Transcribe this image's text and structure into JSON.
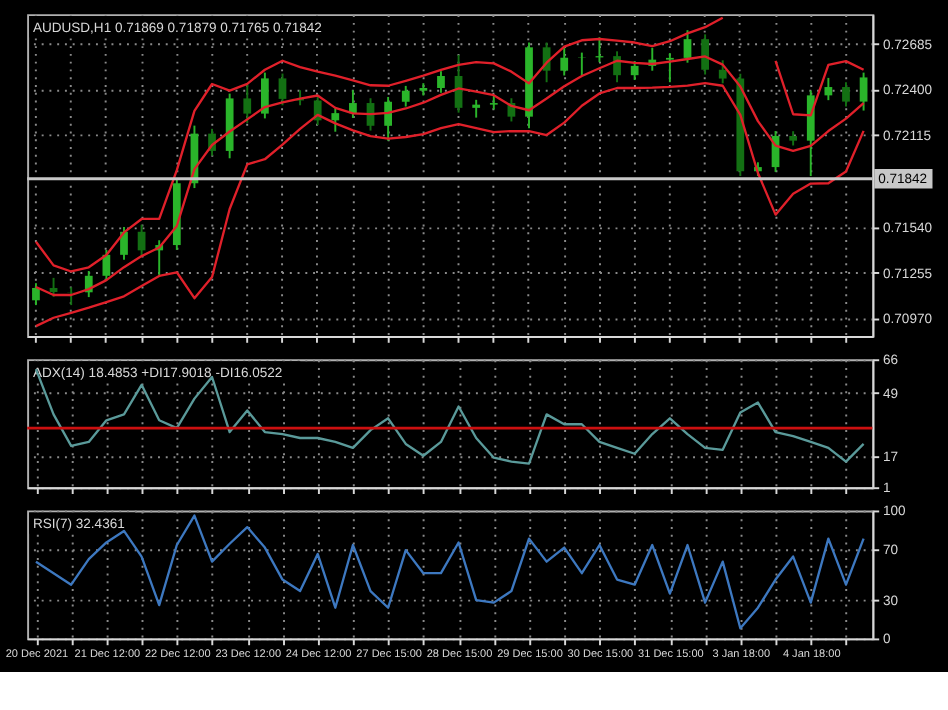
{
  "chart_data": [
    {
      "type": "candlestick",
      "title": "AUDUSD,H1  0.71869 0.71879 0.71765 0.71842",
      "colors": [
        "#2ab52a",
        "#137013",
        "#137013",
        "#2ab52a",
        "#2ab52a",
        "#2ab52a",
        "#137013",
        "#2ab52a",
        "#2ab52a",
        "#2ab52a",
        "#137013",
        "#2ab52a",
        "#137013",
        "#2ab52a",
        "#137013",
        "#137013",
        "#137013",
        "#2ab52a",
        "#2ab52a",
        "#137013",
        "#2ab52a",
        "#2ab52a",
        "#2ab52a",
        "#2ab52a",
        "#137013",
        "#2ab52a",
        "#2ab52a",
        "#137013",
        "#2ab52a",
        "#137013",
        "#2ab52a",
        "#2ab52a",
        "#2ab52a",
        "#137013",
        "#2ab52a",
        "#2ab52a",
        "#2ab52a",
        "#2ab52a",
        "#137013",
        "#137013",
        "#137013",
        "#2ab52a",
        "#2ab52a",
        "#137013",
        "#2ab52a",
        "#2ab52a",
        "#137013",
        "#2ab52a"
      ],
      "grid": true,
      "tick_labels": "y",
      "categories": [
        null,
        null,
        null,
        null,
        null,
        null,
        null,
        null,
        null,
        null,
        null,
        null,
        null,
        null,
        null,
        null,
        null,
        null,
        null,
        null,
        null,
        null,
        null,
        null,
        null,
        null,
        null,
        null,
        null,
        null,
        null,
        null,
        null,
        null,
        null,
        null,
        null,
        null,
        null,
        null,
        null,
        null,
        null,
        null,
        null,
        null,
        null,
        null
      ],
      "ylim": [
        0.7086,
        0.7287
      ],
      "yticks": [
        {
          "value": 0.72685,
          "label": "0.72685"
        },
        {
          "value": 0.724,
          "label": "0.72400"
        },
        {
          "value": 0.72115,
          "label": "0.72115"
        },
        {
          "value": 0.7154,
          "label": "0.71540"
        },
        {
          "value": 0.71255,
          "label": "0.71255"
        },
        {
          "value": 0.7097,
          "label": "0.70970"
        }
      ],
      "ref_lines": [
        {
          "axis": "y",
          "value": 0.71842,
          "label": "0.71842",
          "color": "#c8c8c8"
        }
      ],
      "ohlc": [
        [
          0.71083,
          0.7119,
          0.71053,
          0.7116
        ],
        [
          0.7116,
          0.71223,
          0.71105,
          0.71135
        ],
        [
          0.71135,
          0.71165,
          0.71053,
          0.71133
        ],
        [
          0.71133,
          0.71266,
          0.71103,
          0.71236
        ],
        [
          0.71236,
          0.71397,
          0.71206,
          0.71367
        ],
        [
          0.71367,
          0.71541,
          0.71337,
          0.71511
        ],
        [
          0.71511,
          0.71555,
          0.71365,
          0.71395
        ],
        [
          0.71395,
          0.71458,
          0.7123,
          0.71428
        ],
        [
          0.71428,
          0.71844,
          0.71398,
          0.71814
        ],
        [
          0.71814,
          0.72174,
          0.71784,
          0.72124
        ],
        [
          0.72124,
          0.72154,
          0.71986,
          0.72016
        ],
        [
          0.72016,
          0.72374,
          0.7197,
          0.72344
        ],
        [
          0.72344,
          0.72439,
          0.72191,
          0.72249
        ],
        [
          0.72249,
          0.72505,
          0.72219,
          0.72469
        ],
        [
          0.72469,
          0.72499,
          0.72301,
          0.72341
        ],
        [
          0.72341,
          0.72395,
          0.72301,
          0.72331
        ],
        [
          0.72331,
          0.72361,
          0.72177,
          0.72207
        ],
        [
          0.72207,
          0.72282,
          0.72136,
          0.72252
        ],
        [
          0.72252,
          0.72395,
          0.72222,
          0.72315
        ],
        [
          0.72315,
          0.72345,
          0.72143,
          0.72173
        ],
        [
          0.72173,
          0.72353,
          0.7208,
          0.72323
        ],
        [
          0.72323,
          0.72422,
          0.72293,
          0.72392
        ],
        [
          0.72392,
          0.72439,
          0.72362,
          0.72409
        ],
        [
          0.72409,
          0.72514,
          0.72379,
          0.72484
        ],
        [
          0.72484,
          0.72616,
          0.72255,
          0.72285
        ],
        [
          0.72285,
          0.72335,
          0.72224,
          0.72305
        ],
        [
          0.72305,
          0.72361,
          0.72275,
          0.72315
        ],
        [
          0.72315,
          0.72345,
          0.722,
          0.7223
        ],
        [
          0.7223,
          0.72693,
          0.72158,
          0.72663
        ],
        [
          0.72663,
          0.72693,
          0.72445,
          0.72517
        ],
        [
          0.72517,
          0.7266,
          0.72487,
          0.72598
        ],
        [
          0.72598,
          0.7263,
          0.72489,
          0.726
        ],
        [
          0.726,
          0.72726,
          0.7257,
          0.72608
        ],
        [
          0.72608,
          0.72638,
          0.72445,
          0.72489
        ],
        [
          0.72489,
          0.72577,
          0.72459,
          0.72547
        ],
        [
          0.72547,
          0.7266,
          0.72517,
          0.72586
        ],
        [
          0.72586,
          0.72627,
          0.72445,
          0.72597
        ],
        [
          0.72597,
          0.7277,
          0.72567,
          0.72714
        ],
        [
          0.72714,
          0.72744,
          0.72493,
          0.72523
        ],
        [
          0.72523,
          0.72582,
          0.72438,
          0.72468
        ],
        [
          0.72468,
          0.72498,
          0.71859,
          0.71889
        ],
        [
          0.71889,
          0.71945,
          0.71859,
          0.71915
        ],
        [
          0.71915,
          0.7214,
          0.71885,
          0.72109
        ],
        [
          0.72109,
          0.72139,
          0.7205,
          0.7208
        ],
        [
          0.7208,
          0.72393,
          0.71859,
          0.72363
        ],
        [
          0.72363,
          0.72472,
          0.72333,
          0.72415
        ],
        [
          0.72415,
          0.72445,
          0.72294,
          0.72324
        ],
        [
          0.72324,
          0.72505,
          0.72268,
          0.72475
        ]
      ],
      "series": [
        {
          "type": "line",
          "color": "#e0202a",
          "values": [
            0.71449,
            0.71301,
            0.71263,
            0.71289,
            0.71366,
            0.71507,
            0.71591,
            0.71591,
            0.71896,
            0.72266,
            0.72434,
            0.72393,
            0.72435,
            0.72523,
            0.72579,
            0.72539,
            0.72511,
            0.72486,
            0.72457,
            0.72426,
            0.72423,
            0.72454,
            0.72486,
            0.72522,
            0.72554,
            0.72571,
            0.72563,
            0.72511,
            0.72438,
            0.72567,
            0.72667,
            0.72707,
            0.72715,
            0.72705,
            0.72693,
            0.7267,
            0.72701,
            0.7275,
            0.72789,
            0.72848,
            null,
            null,
            0.72578,
            0.72245,
            0.72238,
            0.72553,
            0.72577,
            0.72523
          ]
        },
        {
          "type": "line",
          "color": "#e0202a",
          "values": [
            0.71166,
            0.71116,
            0.71116,
            0.71153,
            0.71209,
            0.7129,
            0.71359,
            0.71413,
            0.71547,
            0.71902,
            0.72053,
            0.72137,
            0.72213,
            0.7229,
            0.72319,
            0.72342,
            0.72362,
            0.72285,
            0.72251,
            0.72246,
            0.72254,
            0.72281,
            0.72317,
            0.72366,
            0.72406,
            0.72386,
            0.72364,
            0.72297,
            0.7227,
            0.72343,
            0.7242,
            0.72484,
            0.72532,
            0.72579,
            0.72566,
            0.72559,
            0.72574,
            0.7259,
            0.72606,
            0.72555,
            0.72418,
            0.72202,
            0.72049,
            0.72016,
            0.72047,
            0.7214,
            0.72218,
            0.72315
          ]
        },
        {
          "type": "line",
          "color": "#e0202a",
          "values": [
            0.70922,
            0.70974,
            0.71005,
            0.71037,
            0.71072,
            0.71108,
            0.71172,
            0.71235,
            0.71258,
            0.71096,
            0.71228,
            0.71653,
            0.71932,
            0.71964,
            0.72055,
            0.72154,
            0.72241,
            0.72188,
            0.72144,
            0.72108,
            0.72093,
            0.72103,
            0.72121,
            0.72158,
            0.72184,
            0.72158,
            0.72133,
            0.7214,
            0.72139,
            0.72115,
            0.72193,
            0.72298,
            0.72375,
            0.72409,
            0.72409,
            0.72411,
            0.72416,
            0.72424,
            0.7244,
            0.72423,
            0.72241,
            0.71878,
            0.71618,
            0.71749,
            0.71812,
            0.71814,
            0.71887,
            0.72141
          ]
        }
      ]
    },
    {
      "type": "line",
      "title": "ADX(14) 18.4853 +DI17.9018 -DI16.0522",
      "grid": true,
      "tick_labels": "y",
      "categories": [
        null,
        null,
        null,
        null,
        null,
        null,
        null,
        null,
        null,
        null,
        null,
        null,
        null,
        null,
        null,
        null,
        null,
        null,
        null,
        null,
        null,
        null,
        null,
        null,
        null,
        null,
        null,
        null,
        null,
        null,
        null,
        null,
        null,
        null,
        null,
        null,
        null,
        null,
        null,
        null,
        null,
        null,
        null,
        null,
        null,
        null,
        null,
        null
      ],
      "ylim": [
        1,
        66
      ],
      "yticks": [
        1,
        17,
        49,
        66
      ],
      "ref_lines": [
        {
          "axis": "y",
          "value": 31,
          "color": "#cc1010"
        }
      ],
      "series": [
        {
          "color": "#5a9a9a",
          "values": [
            61,
            38,
            22,
            24,
            35,
            38,
            53,
            35,
            31,
            46,
            57,
            29,
            40,
            29,
            28,
            26,
            26,
            24,
            21,
            30,
            36,
            23,
            17,
            24,
            42,
            26,
            16,
            14,
            13,
            38,
            33,
            33,
            24,
            21,
            18,
            28,
            36,
            28,
            21,
            20,
            39,
            44,
            29,
            27,
            24,
            21,
            14,
            23
          ]
        }
      ]
    },
    {
      "type": "line",
      "title": "RSI(7) 32.4361",
      "grid": true,
      "categories": [
        "20 Dec 2021",
        null,
        null,
        null,
        "21 Dec 12:00",
        null,
        null,
        null,
        "22 Dec 12:00",
        null,
        null,
        null,
        "23 Dec 12:00",
        null,
        null,
        null,
        "24 Dec 12:00",
        null,
        null,
        null,
        "27 Dec 15:00",
        null,
        null,
        null,
        "28 Dec 15:00",
        null,
        null,
        null,
        "29 Dec 15:00",
        null,
        null,
        null,
        "30 Dec 15:00",
        null,
        null,
        null,
        "31 Dec 15:00",
        null,
        null,
        null,
        "3 Jan 18:00",
        null,
        null,
        null,
        "4 Jan 18:00",
        null,
        null,
        null
      ],
      "ylim": [
        0,
        100
      ],
      "yticks": [
        0,
        30,
        70,
        100
      ],
      "series": [
        {
          "color": "#3d78c0",
          "values": [
            60,
            51,
            42,
            62,
            75,
            84,
            64,
            26,
            73,
            96,
            60,
            74,
            87,
            71,
            46,
            37,
            66,
            24,
            73,
            37,
            24,
            69,
            51,
            51,
            75,
            30,
            28,
            37,
            78,
            60,
            71,
            51,
            73,
            46,
            42,
            73,
            35,
            73,
            28,
            60,
            8,
            24,
            46,
            64,
            28,
            78,
            42,
            78
          ]
        }
      ]
    }
  ]
}
